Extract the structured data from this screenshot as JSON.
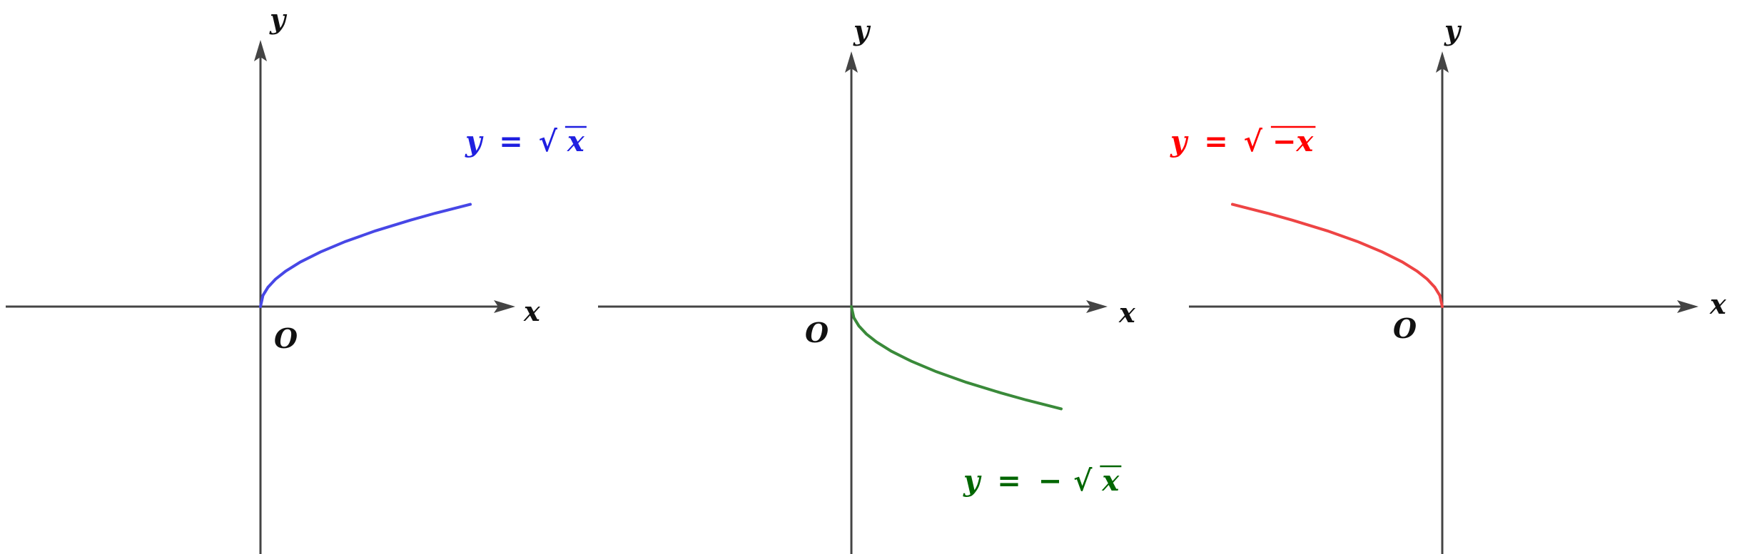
{
  "chart_data": [
    {
      "type": "line",
      "function": "y = √x",
      "x_axis_label": "x",
      "y_axis_label": "y",
      "origin_label": "O",
      "xlim": [
        -5,
        5
      ],
      "ylim": [
        -4.8,
        5.2
      ],
      "series": [
        {
          "label": {
            "lhs": "y",
            "eq": "=",
            "sign": "",
            "sqrt": "√",
            "radicand": "x"
          },
          "color": "#4747e6",
          "label_color": "#1f1fe0",
          "x": [
            0,
            0.05,
            0.15,
            0.3,
            0.5,
            0.8,
            1.2,
            1.7,
            2.3,
            3.0,
            3.5,
            4.2
          ],
          "y": [
            0,
            0.224,
            0.387,
            0.548,
            0.707,
            0.894,
            1.095,
            1.304,
            1.517,
            1.732,
            1.871,
            2.049
          ]
        }
      ]
    },
    {
      "type": "line",
      "function": "y = -√x",
      "x_axis_label": "x",
      "y_axis_label": "y",
      "origin_label": "O",
      "xlim": [
        -5,
        5
      ],
      "ylim": [
        -4.8,
        5.2
      ],
      "series": [
        {
          "label": {
            "lhs": "y",
            "eq": "=",
            "sign": "−",
            "sqrt": "√",
            "radicand": "x"
          },
          "color": "#3a8a3a",
          "label_color": "#006600",
          "x": [
            0,
            0.05,
            0.15,
            0.3,
            0.5,
            0.8,
            1.2,
            1.7,
            2.3,
            3.0,
            3.5,
            4.2
          ],
          "y": [
            0,
            -0.224,
            -0.387,
            -0.548,
            -0.707,
            -0.894,
            -1.095,
            -1.304,
            -1.517,
            -1.732,
            -1.871,
            -2.049
          ]
        }
      ]
    },
    {
      "type": "line",
      "function": "y = √(-x)",
      "x_axis_label": "x",
      "y_axis_label": "y",
      "origin_label": "O",
      "xlim": [
        -5,
        5
      ],
      "ylim": [
        -4.8,
        5.2
      ],
      "series": [
        {
          "label": {
            "lhs": "y",
            "eq": "=",
            "sign": "",
            "sqrt": "√",
            "radicand": "−x"
          },
          "color": "#ee4444",
          "label_color": "#ff0000",
          "x": [
            0,
            -0.05,
            -0.15,
            -0.3,
            -0.5,
            -0.8,
            -1.2,
            -1.7,
            -2.3,
            -3.0,
            -3.5,
            -4.2
          ],
          "y": [
            0,
            0.224,
            0.387,
            0.548,
            0.707,
            0.894,
            1.095,
            1.304,
            1.517,
            1.732,
            1.871,
            2.049
          ]
        }
      ]
    }
  ]
}
